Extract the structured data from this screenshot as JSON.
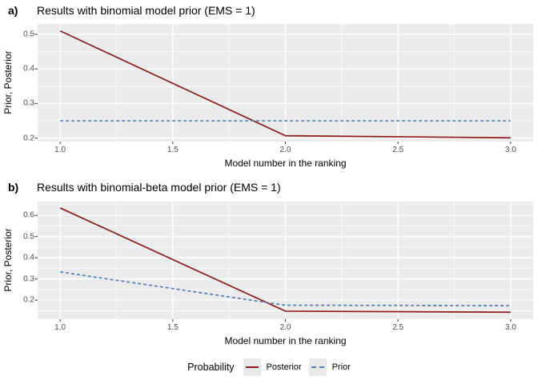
{
  "colors": {
    "posterior": "#8E1B1B",
    "prior": "#4E80BD",
    "panel_bg": "#EBEBEB",
    "grid": "#FFFFFF",
    "tick_label": "#4D4D4D",
    "tick_mark": "#333333"
  },
  "chart_data": [
    {
      "type": "line",
      "tag": "a)",
      "title": "Results with binomial model prior (EMS = 1)",
      "xlabel": "Model number in the ranking",
      "ylabel": "Prior, Posterior",
      "xlim": [
        0.9,
        3.1
      ],
      "ylim": [
        0.19,
        0.53
      ],
      "x_ticks": [
        1.0,
        1.5,
        2.0,
        2.5,
        3.0
      ],
      "x_tick_labels": [
        "1.0",
        "1.5",
        "2.0",
        "2.5",
        "3.0"
      ],
      "y_ticks": [
        0.2,
        0.3,
        0.4,
        0.5
      ],
      "y_tick_labels": [
        "0.2",
        "0.3",
        "0.4",
        "0.5"
      ],
      "grid": "major+minor",
      "legend_position": "bottom",
      "series": [
        {
          "name": "Posterior",
          "color_key": "posterior",
          "linetype": "solid",
          "x": [
            1,
            2,
            3
          ],
          "y": [
            0.51,
            0.207,
            0.201
          ]
        },
        {
          "name": "Prior",
          "color_key": "prior",
          "linetype": "dashed",
          "x": [
            1,
            2,
            3
          ],
          "y": [
            0.25,
            0.25,
            0.25
          ]
        }
      ]
    },
    {
      "type": "line",
      "tag": "b)",
      "title": "Results with binomial-beta model prior (EMS = 1)",
      "xlabel": "Model number in the ranking",
      "ylabel": "Prior, Posterior",
      "xlim": [
        0.9,
        3.1
      ],
      "ylim": [
        0.11,
        0.665
      ],
      "x_ticks": [
        1.0,
        1.5,
        2.0,
        2.5,
        3.0
      ],
      "x_tick_labels": [
        "1.0",
        "1.5",
        "2.0",
        "2.5",
        "3.0"
      ],
      "y_ticks": [
        0.2,
        0.3,
        0.4,
        0.5,
        0.6
      ],
      "y_tick_labels": [
        "0.2",
        "0.3",
        "0.4",
        "0.5",
        "0.6"
      ],
      "grid": "major+minor",
      "legend_position": "bottom",
      "series": [
        {
          "name": "Posterior",
          "color_key": "posterior",
          "linetype": "solid",
          "x": [
            1,
            2,
            3
          ],
          "y": [
            0.635,
            0.148,
            0.143
          ]
        },
        {
          "name": "Prior",
          "color_key": "prior",
          "linetype": "dashed",
          "x": [
            1,
            2,
            3
          ],
          "y": [
            0.333,
            0.176,
            0.174
          ]
        }
      ]
    }
  ],
  "legend": {
    "title": "Probability",
    "entries": [
      {
        "label": "Posterior",
        "linetype": "solid",
        "color_key": "posterior"
      },
      {
        "label": "Prior",
        "linetype": "dashed",
        "color_key": "prior"
      }
    ]
  }
}
